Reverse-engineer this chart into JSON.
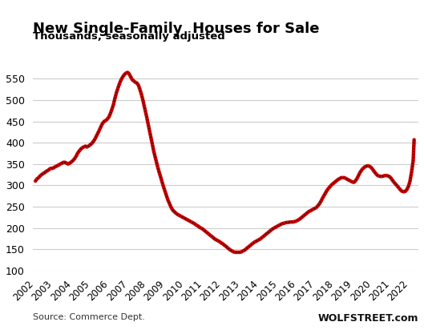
{
  "title": "New Single-Family  Houses for Sale",
  "subtitle": "Thousands, seasonally adjusted",
  "source_left": "Source: Commerce Dept.",
  "source_right": "WOLFSTREET.com",
  "ylim": [
    100,
    580
  ],
  "yticks": [
    100,
    150,
    200,
    250,
    300,
    350,
    400,
    450,
    500,
    550
  ],
  "xlim_start": 2001.85,
  "xlim_end": 2022.45,
  "background_color": "#ffffff",
  "grid_color": "#cccccc",
  "line_color_outer": "#cc0000",
  "line_color_inner": "#111111",
  "data": [
    [
      2002.0,
      310
    ],
    [
      2002.08,
      315
    ],
    [
      2002.17,
      318
    ],
    [
      2002.25,
      322
    ],
    [
      2002.33,
      325
    ],
    [
      2002.42,
      328
    ],
    [
      2002.5,
      330
    ],
    [
      2002.58,
      333
    ],
    [
      2002.67,
      335
    ],
    [
      2002.75,
      338
    ],
    [
      2002.83,
      340
    ],
    [
      2002.92,
      340
    ],
    [
      2003.0,
      342
    ],
    [
      2003.08,
      344
    ],
    [
      2003.17,
      346
    ],
    [
      2003.25,
      348
    ],
    [
      2003.33,
      350
    ],
    [
      2003.42,
      352
    ],
    [
      2003.5,
      354
    ],
    [
      2003.58,
      354
    ],
    [
      2003.67,
      352
    ],
    [
      2003.75,
      350
    ],
    [
      2003.83,
      352
    ],
    [
      2003.92,
      355
    ],
    [
      2004.0,
      358
    ],
    [
      2004.08,
      362
    ],
    [
      2004.17,
      368
    ],
    [
      2004.25,
      375
    ],
    [
      2004.33,
      380
    ],
    [
      2004.42,
      385
    ],
    [
      2004.5,
      388
    ],
    [
      2004.58,
      390
    ],
    [
      2004.67,
      392
    ],
    [
      2004.75,
      390
    ],
    [
      2004.83,
      392
    ],
    [
      2004.92,
      395
    ],
    [
      2005.0,
      398
    ],
    [
      2005.08,
      402
    ],
    [
      2005.17,
      408
    ],
    [
      2005.25,
      415
    ],
    [
      2005.33,
      422
    ],
    [
      2005.42,
      430
    ],
    [
      2005.5,
      438
    ],
    [
      2005.58,
      445
    ],
    [
      2005.67,
      450
    ],
    [
      2005.75,
      452
    ],
    [
      2005.83,
      455
    ],
    [
      2005.92,
      460
    ],
    [
      2006.0,
      468
    ],
    [
      2006.08,
      478
    ],
    [
      2006.17,
      490
    ],
    [
      2006.25,
      505
    ],
    [
      2006.33,
      518
    ],
    [
      2006.42,
      530
    ],
    [
      2006.5,
      540
    ],
    [
      2006.58,
      548
    ],
    [
      2006.67,
      555
    ],
    [
      2006.75,
      560
    ],
    [
      2006.83,
      563
    ],
    [
      2006.92,
      565
    ],
    [
      2007.0,
      562
    ],
    [
      2007.08,
      555
    ],
    [
      2007.17,
      548
    ],
    [
      2007.25,
      545
    ],
    [
      2007.33,
      542
    ],
    [
      2007.42,
      540
    ],
    [
      2007.5,
      535
    ],
    [
      2007.58,
      525
    ],
    [
      2007.67,
      512
    ],
    [
      2007.75,
      498
    ],
    [
      2007.83,
      482
    ],
    [
      2007.92,
      465
    ],
    [
      2008.0,
      448
    ],
    [
      2008.08,
      430
    ],
    [
      2008.17,
      412
    ],
    [
      2008.25,
      395
    ],
    [
      2008.33,
      378
    ],
    [
      2008.42,
      362
    ],
    [
      2008.5,
      348
    ],
    [
      2008.58,
      335
    ],
    [
      2008.67,
      322
    ],
    [
      2008.75,
      310
    ],
    [
      2008.83,
      298
    ],
    [
      2008.92,
      286
    ],
    [
      2009.0,
      275
    ],
    [
      2009.08,
      265
    ],
    [
      2009.17,
      256
    ],
    [
      2009.25,
      248
    ],
    [
      2009.33,
      242
    ],
    [
      2009.42,
      238
    ],
    [
      2009.5,
      235
    ],
    [
      2009.58,
      232
    ],
    [
      2009.67,
      230
    ],
    [
      2009.75,
      228
    ],
    [
      2009.83,
      226
    ],
    [
      2009.92,
      224
    ],
    [
      2010.0,
      222
    ],
    [
      2010.08,
      220
    ],
    [
      2010.17,
      218
    ],
    [
      2010.25,
      216
    ],
    [
      2010.33,
      214
    ],
    [
      2010.42,
      212
    ],
    [
      2010.5,
      210
    ],
    [
      2010.58,
      207
    ],
    [
      2010.67,
      205
    ],
    [
      2010.75,
      202
    ],
    [
      2010.83,
      200
    ],
    [
      2010.92,
      198
    ],
    [
      2011.0,
      195
    ],
    [
      2011.08,
      192
    ],
    [
      2011.17,
      189
    ],
    [
      2011.25,
      186
    ],
    [
      2011.33,
      183
    ],
    [
      2011.42,
      180
    ],
    [
      2011.5,
      177
    ],
    [
      2011.58,
      174
    ],
    [
      2011.67,
      172
    ],
    [
      2011.75,
      170
    ],
    [
      2011.83,
      168
    ],
    [
      2011.92,
      165
    ],
    [
      2012.0,
      163
    ],
    [
      2012.08,
      160
    ],
    [
      2012.17,
      157
    ],
    [
      2012.25,
      154
    ],
    [
      2012.33,
      151
    ],
    [
      2012.42,
      148
    ],
    [
      2012.5,
      146
    ],
    [
      2012.58,
      144
    ],
    [
      2012.67,
      143
    ],
    [
      2012.75,
      143
    ],
    [
      2012.83,
      143
    ],
    [
      2012.92,
      143
    ],
    [
      2013.0,
      144
    ],
    [
      2013.08,
      146
    ],
    [
      2013.17,
      148
    ],
    [
      2013.25,
      151
    ],
    [
      2013.33,
      154
    ],
    [
      2013.42,
      157
    ],
    [
      2013.5,
      160
    ],
    [
      2013.58,
      163
    ],
    [
      2013.67,
      166
    ],
    [
      2013.75,
      168
    ],
    [
      2013.83,
      170
    ],
    [
      2013.92,
      172
    ],
    [
      2014.0,
      174
    ],
    [
      2014.08,
      177
    ],
    [
      2014.17,
      180
    ],
    [
      2014.25,
      183
    ],
    [
      2014.33,
      186
    ],
    [
      2014.42,
      189
    ],
    [
      2014.5,
      192
    ],
    [
      2014.58,
      195
    ],
    [
      2014.67,
      198
    ],
    [
      2014.75,
      200
    ],
    [
      2014.83,
      202
    ],
    [
      2014.92,
      204
    ],
    [
      2015.0,
      206
    ],
    [
      2015.08,
      208
    ],
    [
      2015.17,
      210
    ],
    [
      2015.25,
      211
    ],
    [
      2015.33,
      212
    ],
    [
      2015.42,
      213
    ],
    [
      2015.5,
      213
    ],
    [
      2015.58,
      214
    ],
    [
      2015.67,
      214
    ],
    [
      2015.75,
      214
    ],
    [
      2015.83,
      215
    ],
    [
      2015.92,
      216
    ],
    [
      2016.0,
      218
    ],
    [
      2016.08,
      220
    ],
    [
      2016.17,
      223
    ],
    [
      2016.25,
      226
    ],
    [
      2016.33,
      229
    ],
    [
      2016.42,
      232
    ],
    [
      2016.5,
      235
    ],
    [
      2016.58,
      238
    ],
    [
      2016.67,
      240
    ],
    [
      2016.75,
      242
    ],
    [
      2016.83,
      244
    ],
    [
      2016.92,
      246
    ],
    [
      2017.0,
      248
    ],
    [
      2017.08,
      252
    ],
    [
      2017.17,
      257
    ],
    [
      2017.25,
      263
    ],
    [
      2017.33,
      270
    ],
    [
      2017.42,
      277
    ],
    [
      2017.5,
      283
    ],
    [
      2017.58,
      289
    ],
    [
      2017.67,
      294
    ],
    [
      2017.75,
      298
    ],
    [
      2017.83,
      302
    ],
    [
      2017.92,
      305
    ],
    [
      2018.0,
      308
    ],
    [
      2018.08,
      311
    ],
    [
      2018.17,
      314
    ],
    [
      2018.25,
      316
    ],
    [
      2018.33,
      318
    ],
    [
      2018.42,
      318
    ],
    [
      2018.5,
      318
    ],
    [
      2018.58,
      316
    ],
    [
      2018.67,
      314
    ],
    [
      2018.75,
      312
    ],
    [
      2018.83,
      310
    ],
    [
      2018.92,
      308
    ],
    [
      2019.0,
      307
    ],
    [
      2019.08,
      310
    ],
    [
      2019.17,
      316
    ],
    [
      2019.25,
      323
    ],
    [
      2019.33,
      330
    ],
    [
      2019.42,
      336
    ],
    [
      2019.5,
      340
    ],
    [
      2019.58,
      343
    ],
    [
      2019.67,
      345
    ],
    [
      2019.75,
      346
    ],
    [
      2019.83,
      345
    ],
    [
      2019.92,
      342
    ],
    [
      2020.0,
      338
    ],
    [
      2020.08,
      333
    ],
    [
      2020.17,
      328
    ],
    [
      2020.25,
      324
    ],
    [
      2020.33,
      322
    ],
    [
      2020.42,
      321
    ],
    [
      2020.5,
      321
    ],
    [
      2020.58,
      322
    ],
    [
      2020.67,
      323
    ],
    [
      2020.75,
      323
    ],
    [
      2020.83,
      322
    ],
    [
      2020.92,
      320
    ],
    [
      2021.0,
      316
    ],
    [
      2021.08,
      311
    ],
    [
      2021.17,
      306
    ],
    [
      2021.25,
      302
    ],
    [
      2021.33,
      298
    ],
    [
      2021.42,
      293
    ],
    [
      2021.5,
      289
    ],
    [
      2021.58,
      286
    ],
    [
      2021.67,
      285
    ],
    [
      2021.75,
      286
    ],
    [
      2021.83,
      290
    ],
    [
      2021.92,
      298
    ],
    [
      2022.0,
      310
    ],
    [
      2022.08,
      330
    ],
    [
      2022.17,
      358
    ],
    [
      2022.22,
      407
    ]
  ]
}
